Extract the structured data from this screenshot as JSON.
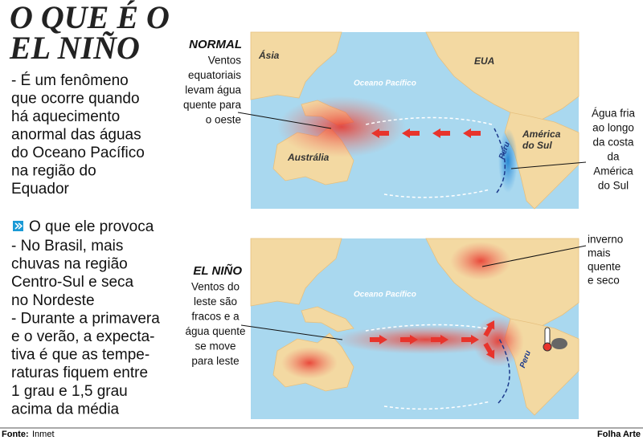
{
  "header": {
    "title": [
      "O QUE É O",
      "EL NIÑO"
    ]
  },
  "intro": [
    "- É um fenômeno",
    "que ocorre quando",
    "há aquecimento",
    "anormal das águas",
    "do Oceano Pacífico",
    "na região do",
    "Equador"
  ],
  "effects": {
    "heading": "O que ele provoca",
    "lines": [
      "- No Brasil, mais",
      "chuvas na região",
      "Centro-Sul e seca",
      "no Nordeste",
      "- Durante a primavera",
      "e o verão, a expecta-",
      "tiva é que as tempe-",
      "raturas fiquem entre",
      "1 grau e 1,5 grau",
      "acima da média"
    ]
  },
  "maps": [
    {
      "label": "NORMAL",
      "left_note": [
        "Ventos",
        "equatoriais",
        "levam água",
        "quente para",
        "o oeste"
      ],
      "right_note": [
        "Água fria",
        "ao longo",
        "da costa",
        "da",
        "América",
        "do Sul"
      ],
      "places": {
        "asia": "Ásia",
        "usa": "EUA",
        "ocean": "Oceano Pacífico",
        "australia": "Austrália",
        "south_america": [
          "América",
          "do Sul"
        ],
        "peru": "Peru"
      }
    },
    {
      "label": "EL NIÑO",
      "left_note": [
        "Ventos do",
        "leste são",
        "fracos e a",
        "água quente",
        "se move",
        "para leste"
      ],
      "right_note": [
        "inverno",
        "mais",
        "quente",
        "e seco"
      ],
      "places": {
        "ocean": "Oceano Pacífico",
        "peru": "Peru"
      }
    }
  ],
  "footer": {
    "source_label": "Fonte:",
    "source": "Inmet",
    "credit": "Folha Arte"
  }
}
